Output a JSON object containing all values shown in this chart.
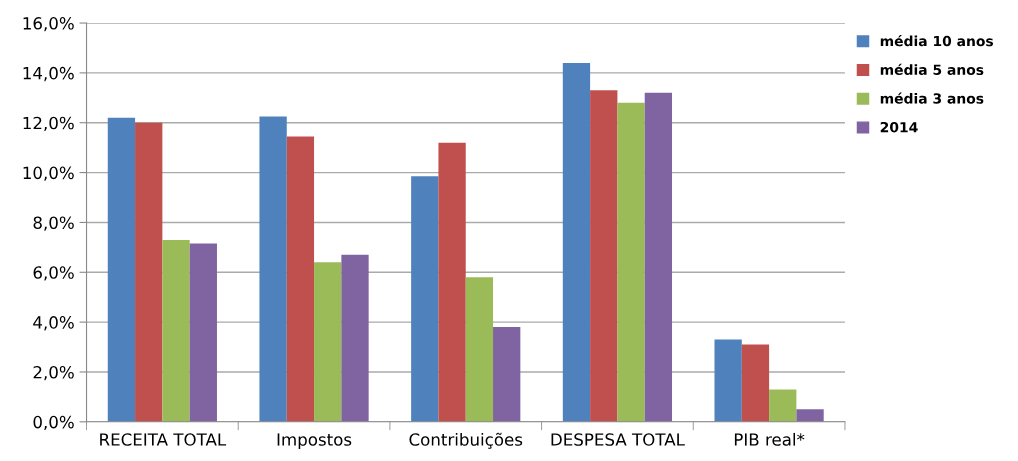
{
  "chart_data": {
    "type": "bar",
    "categories": [
      "RECEITA TOTAL",
      "Impostos",
      "Contribuições",
      "DESPESA TOTAL",
      "PIB real*"
    ],
    "series": [
      {
        "name": "média 10 anos",
        "color": "#4f81bd",
        "values": [
          12.2,
          12.25,
          9.85,
          14.4,
          3.3
        ]
      },
      {
        "name": "média 5 anos",
        "color": "#c0504d",
        "values": [
          12.0,
          11.45,
          11.2,
          13.3,
          3.1
        ]
      },
      {
        "name": "média 3 anos",
        "color": "#9bbb59",
        "values": [
          7.3,
          6.4,
          5.8,
          12.8,
          1.3
        ]
      },
      {
        "name": "2014",
        "color": "#8064a2",
        "values": [
          7.15,
          6.7,
          3.8,
          13.2,
          0.5
        ]
      }
    ],
    "ylim": [
      0,
      16
    ],
    "yticks": [
      {
        "value": 0,
        "label": "0,0%"
      },
      {
        "value": 2,
        "label": "2,0%"
      },
      {
        "value": 4,
        "label": "4,0%"
      },
      {
        "value": 6,
        "label": "6,0%"
      },
      {
        "value": 8,
        "label": "8,0%"
      },
      {
        "value": 10,
        "label": "10,0%"
      },
      {
        "value": 12,
        "label": "12,0%"
      },
      {
        "value": 14,
        "label": "14,0%"
      },
      {
        "value": 16,
        "label": "16,0%"
      }
    ],
    "grid": "y",
    "legend": "top right"
  }
}
